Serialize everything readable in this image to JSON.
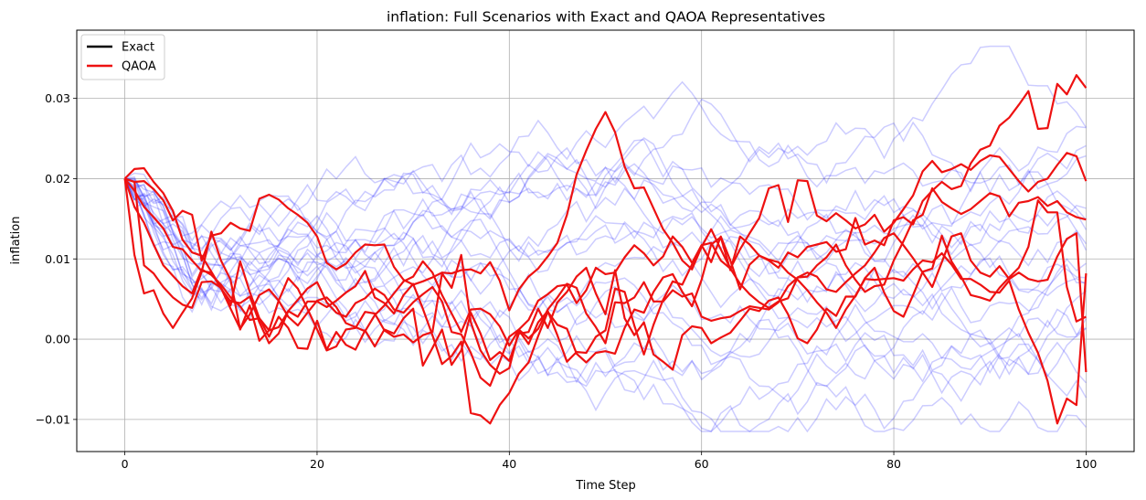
{
  "chart_data": {
    "type": "line",
    "title": "inflation: Full Scenarios with Exact and QAOA Representatives",
    "xlabel": "Time Step",
    "ylabel": "inflation",
    "xlim": [
      -5,
      105
    ],
    "ylim": [
      -0.014,
      0.0385
    ],
    "xticks": [
      0,
      20,
      40,
      60,
      80,
      100
    ],
    "yticks": [
      -0.01,
      0.0,
      0.01,
      0.02,
      0.03
    ],
    "ytick_labels": [
      "−0.01",
      "0.00",
      "0.01",
      "0.02",
      "0.03"
    ],
    "grid": true,
    "legend_position": "top-left",
    "legend": [
      {
        "name": "Exact",
        "color": "#000000"
      },
      {
        "name": "QAOA",
        "color": "#ee1111"
      }
    ],
    "background_series": {
      "color": "#0000ff",
      "opacity": 0.2,
      "count": 20,
      "start": 0.02,
      "steps": 100,
      "y_range": [
        -0.0115,
        0.0365
      ]
    },
    "series": [
      {
        "name": "QAOA",
        "color": "#ee1111",
        "values": [
          0.02,
          0.0196,
          0.0197,
          0.0187,
          0.0173,
          0.0148,
          0.016,
          0.0155,
          0.0098,
          0.0129,
          0.0132,
          0.0145,
          0.0138,
          0.0135,
          0.0175,
          0.018,
          0.0174,
          0.0163,
          0.0155,
          0.0145,
          0.0128,
          0.0095,
          0.0087,
          0.0094,
          0.0108,
          0.0118,
          0.0117,
          0.0118,
          0.009,
          0.0074,
          0.0068,
          0.0072,
          0.0077,
          0.0083,
          0.0082,
          0.0086,
          0.0087,
          0.0082,
          0.0096,
          0.0073,
          0.0036,
          0.0062,
          0.0078,
          0.0088,
          0.0103,
          0.012,
          0.0155,
          0.0205,
          0.0235,
          0.0262,
          0.0283,
          0.0258,
          0.0215,
          0.0188,
          0.0189,
          0.0163,
          0.0137,
          0.012,
          0.0098,
          0.0087,
          0.0115,
          0.0137,
          0.0112,
          0.0088,
          0.0112,
          0.0132,
          0.0151,
          0.0188,
          0.0192,
          0.0146,
          0.0198,
          0.0197,
          0.0154,
          0.0147,
          0.0157,
          0.0148,
          0.0138,
          0.0143,
          0.0155,
          0.0134,
          0.0145,
          0.0162,
          0.0179,
          0.0209,
          0.0222,
          0.0208,
          0.0212,
          0.0218,
          0.0211,
          0.0222,
          0.0229,
          0.0227,
          0.0212,
          0.0197,
          0.0184,
          0.0196,
          0.02,
          0.0217,
          0.0232,
          0.0228,
          0.0197
        ]
      },
      {
        "name": "QAOA",
        "color": "#ee1111",
        "values": [
          0.02,
          0.0212,
          0.0213,
          0.0196,
          0.0182,
          0.016,
          0.0124,
          0.0108,
          0.0104,
          0.0084,
          0.0064,
          0.0038,
          0.0013,
          0.0031,
          0.0055,
          0.0062,
          0.0048,
          0.0028,
          0.0017,
          0.0033,
          0.0048,
          0.0052,
          0.004,
          0.002,
          0.0015,
          0.001,
          0.003,
          0.0042,
          0.0057,
          0.0072,
          0.0078,
          0.0097,
          0.0083,
          0.0055,
          0.0032,
          0.0009,
          0.0037,
          0.0038,
          0.0031,
          0.0016,
          -0.0008,
          0.0012,
          0.0024,
          0.0048,
          0.0056,
          0.0066,
          0.0068,
          0.0045,
          0.0061,
          0.0089,
          0.0081,
          0.0083,
          0.0102,
          0.0117,
          0.0107,
          0.0092,
          0.0103,
          0.0128,
          0.0115,
          0.0095,
          0.0117,
          0.012,
          0.0098,
          0.0088,
          0.0069,
          0.0056,
          0.0046,
          0.0039,
          0.0047,
          0.0051,
          0.0077,
          0.0078,
          0.0092,
          0.0102,
          0.0118,
          0.0092,
          0.0074,
          0.0059,
          0.0066,
          0.0068,
          0.0098,
          0.0122,
          0.0148,
          0.0155,
          0.0188,
          0.0171,
          0.0163,
          0.0156,
          0.0162,
          0.0172,
          0.0182,
          0.0178,
          0.0153,
          0.017,
          0.0172,
          0.0177,
          0.0166,
          0.0172,
          0.0158,
          0.0152,
          0.0149
        ]
      },
      {
        "name": "QAOA",
        "color": "#ee1111",
        "values": [
          0.02,
          0.0165,
          0.0145,
          0.0118,
          0.0092,
          0.0079,
          0.0066,
          0.0057,
          0.0087,
          0.008,
          0.0068,
          0.0052,
          0.0041,
          0.0024,
          0.0026,
          0.0011,
          0.0015,
          0.0035,
          0.0049,
          0.0063,
          0.0071,
          0.0046,
          0.0033,
          0.0028,
          0.0045,
          0.0051,
          0.0063,
          0.0055,
          0.0037,
          0.0033,
          0.0046,
          0.0056,
          0.0065,
          0.0047,
          0.0009,
          0.0006,
          -0.0017,
          -0.0048,
          -0.0058,
          -0.0028,
          0.0003,
          0.0012,
          0.0001,
          0.0013,
          0.0037,
          0.0052,
          0.0069,
          0.0064,
          0.0032,
          0.0015,
          -0.0005,
          0.0046,
          0.0045,
          0.0052,
          0.0071,
          0.0047,
          0.0047,
          0.0061,
          0.0053,
          0.0057,
          0.0028,
          0.0023,
          0.0026,
          0.0028,
          0.0035,
          0.0041,
          0.0039,
          0.0037,
          0.0046,
          0.0066,
          0.0077,
          0.0083,
          0.0078,
          0.0062,
          0.0059,
          0.0071,
          0.0082,
          0.0092,
          0.0108,
          0.0126,
          0.0132,
          0.0117,
          0.0101,
          0.0083,
          0.0065,
          0.0096,
          0.0128,
          0.0132,
          0.0098,
          0.0083,
          0.0078,
          0.0091,
          0.0075,
          0.0083,
          0.0075,
          0.0072,
          0.0074,
          0.0103,
          0.0125,
          0.0132,
          -0.0041
        ]
      },
      {
        "name": "QAOA",
        "color": "#ee1111",
        "values": [
          0.02,
          0.0105,
          0.0057,
          0.0061,
          0.0032,
          0.0014,
          0.0033,
          0.0051,
          0.0084,
          0.0134,
          0.0098,
          0.0074,
          0.0012,
          0.0042,
          -0.0002,
          0.0011,
          0.0048,
          0.0076,
          0.0063,
          0.0038,
          0.0012,
          -0.0014,
          -0.0009,
          0.0012,
          0.0014,
          0.0034,
          0.0032,
          0.0011,
          0.0003,
          0.0006,
          -0.0004,
          0.0005,
          0.0009,
          0.0082,
          0.0064,
          0.0105,
          0.0021,
          -0.0014,
          -0.0032,
          -0.0043,
          -0.0036,
          0.0011,
          -0.0006,
          0.0021,
          0.0035,
          0.0005,
          -0.0028,
          -0.0016,
          -0.0017,
          0.0003,
          0.0011,
          0.0063,
          0.0059,
          0.0017,
          -0.0019,
          0.0018,
          0.0049,
          0.0072,
          0.0068,
          0.0093,
          0.0117,
          0.0096,
          0.0128,
          0.0098,
          0.0062,
          0.0093,
          0.0104,
          0.0098,
          0.0089,
          0.0108,
          0.0102,
          0.0115,
          0.0118,
          0.0121,
          0.0109,
          0.0112,
          0.0151,
          0.0118,
          0.0123,
          0.0117,
          0.0148,
          0.0152,
          0.0143,
          0.0172,
          0.0185,
          0.0196,
          0.0187,
          0.0191,
          0.0219,
          0.0236,
          0.0241,
          0.0266,
          0.0276,
          0.0292,
          0.0309,
          0.0262,
          0.0263,
          0.0318,
          0.0305,
          0.0329,
          0.0313
        ]
      },
      {
        "name": "QAOA",
        "color": "#ee1111",
        "values": [
          0.02,
          0.0185,
          0.0165,
          0.0152,
          0.0138,
          0.0115,
          0.0112,
          0.0098,
          0.0085,
          0.0083,
          0.0063,
          0.0047,
          0.0045,
          0.0053,
          0.0021,
          -0.0005,
          0.0007,
          0.0035,
          0.0028,
          0.0047,
          0.0047,
          0.004,
          0.0048,
          0.0058,
          0.0066,
          0.0085,
          0.0052,
          0.0045,
          0.0032,
          0.0055,
          0.0069,
          0.0038,
          0.0005,
          -0.0031,
          -0.0021,
          -0.0003,
          -0.0092,
          -0.0095,
          -0.0105,
          -0.0082,
          -0.0067,
          -0.0043,
          -0.0029,
          0.0004,
          0.0034,
          0.0018,
          0.0013,
          -0.0018,
          -0.0029,
          -0.0017,
          -0.0015,
          -0.0018,
          0.0014,
          0.0037,
          0.0033,
          0.0059,
          0.0077,
          0.0081,
          0.0059,
          0.0041,
          0.0074,
          0.0118,
          0.0127,
          0.0086,
          0.0128,
          0.0118,
          0.0104,
          0.0099,
          0.0096,
          0.0083,
          0.0074,
          0.0061,
          0.0046,
          0.0033,
          0.0014,
          0.0037,
          0.0054,
          0.0075,
          0.0074,
          0.0075,
          0.0076,
          0.0073,
          0.0087,
          0.0098,
          0.0096,
          0.0107,
          0.0093,
          0.0075,
          0.0075,
          0.0068,
          0.0059,
          0.0058,
          0.0073,
          0.0037,
          0.0008,
          -0.0017,
          -0.0052,
          -0.0105,
          -0.0074,
          -0.0082,
          0.0082
        ]
      },
      {
        "name": "QAOA",
        "color": "#ee1111",
        "values": [
          0.02,
          0.0196,
          0.0092,
          0.0082,
          0.0065,
          0.0052,
          0.0043,
          0.0039,
          0.0071,
          0.0072,
          0.0064,
          0.0042,
          0.0097,
          0.0059,
          0.0026,
          0.0003,
          0.0028,
          0.0014,
          -0.0011,
          -0.0012,
          0.0023,
          -0.0013,
          0.0009,
          -0.0007,
          -0.0013,
          0.0011,
          -0.0009,
          0.0012,
          0.0007,
          0.0026,
          0.0038,
          -0.0033,
          -0.0011,
          0.0012,
          -0.0032,
          -0.0014,
          0.0033,
          0.0007,
          -0.0026,
          -0.0016,
          -0.0027,
          0.0007,
          0.0009,
          0.0038,
          0.0014,
          0.0046,
          0.0059,
          0.0078,
          0.0089,
          0.0057,
          0.0031,
          0.0086,
          0.0026,
          0.0005,
          0.0021,
          -0.0019,
          -0.0028,
          -0.0038,
          0.0005,
          0.0016,
          0.0014,
          -0.0005,
          0.0002,
          0.0008,
          0.0023,
          0.0038,
          0.0035,
          0.0048,
          0.0052,
          0.0031,
          0.0001,
          -0.0005,
          0.0012,
          0.0038,
          0.0029,
          0.0053,
          0.0053,
          0.0076,
          0.0089,
          0.0058,
          0.0035,
          0.0028,
          0.0055,
          0.0084,
          0.0088,
          0.0129,
          0.0097,
          0.0078,
          0.0055,
          0.0052,
          0.0048,
          0.0064,
          0.0077,
          0.0089,
          0.0115,
          0.0173,
          0.0158,
          0.0158,
          0.0065,
          0.0022,
          0.0028
        ]
      }
    ]
  }
}
